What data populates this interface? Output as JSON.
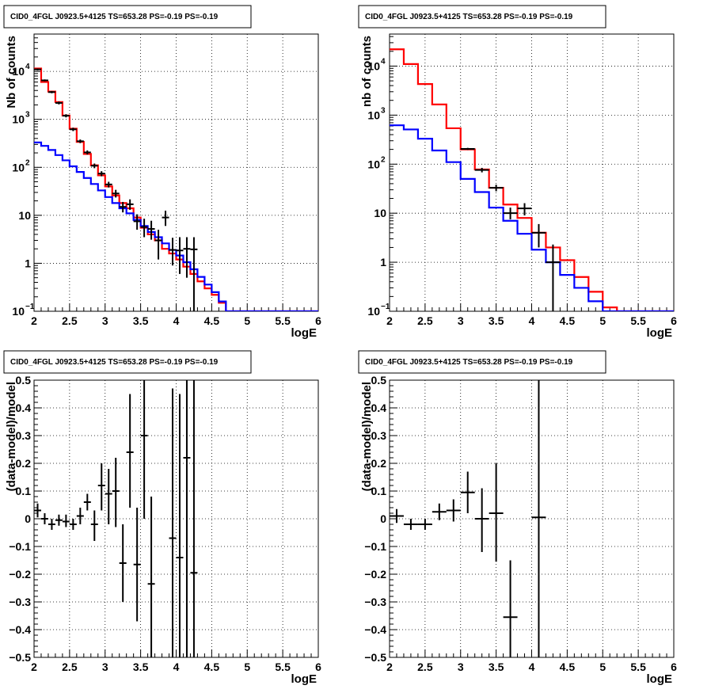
{
  "chart_data": [
    {
      "type": "line",
      "title": "CID0_4FGL J0923.5+4125 TS=653.28 PS=-0.19 PS=-0.19",
      "xlabel": "logE",
      "ylabel": "Nb of counts",
      "xlim": [
        2,
        6
      ],
      "ylim": [
        0.1,
        60000
      ],
      "yscale": "log",
      "grid": true,
      "xticks": [
        "2",
        "2.5",
        "3",
        "3.5",
        "4",
        "4.5",
        "5",
        "5.5",
        "6"
      ],
      "yticks": [
        {
          "v": 0.1,
          "base": "10",
          "exp": "−1"
        },
        {
          "v": 1,
          "label": "1"
        },
        {
          "v": 10,
          "label": "10"
        },
        {
          "v": 100,
          "base": "10",
          "exp": "2"
        },
        {
          "v": 1000,
          "base": "10",
          "exp": "3"
        },
        {
          "v": 10000,
          "base": "10",
          "exp": "4"
        }
      ],
      "series": [
        {
          "color": "#ff0000",
          "style": "step",
          "edges": [
            2,
            2.1,
            2.2,
            2.3,
            2.4,
            2.5,
            2.6,
            2.7,
            2.8,
            2.9,
            3,
            3.1,
            3.2,
            3.3,
            3.4,
            3.5,
            3.6,
            3.7,
            3.8,
            3.9,
            4,
            4.1,
            4.2,
            4.3,
            4.4,
            4.5,
            4.6,
            4.7,
            4.8,
            4.9,
            5,
            5.1,
            5.2,
            5.3,
            5.4,
            5.5,
            5.6,
            5.7,
            5.8,
            5.9,
            6
          ],
          "values": [
            11500,
            6000,
            3800,
            2300,
            1200,
            640,
            340,
            190,
            110,
            68,
            40,
            26,
            18,
            14,
            9,
            5.5,
            4,
            3,
            2,
            1.6,
            1.2,
            0.85,
            0.6,
            0.42,
            0.3,
            0.22,
            0.15,
            0.1,
            0.1,
            0.1,
            0.1,
            0.1,
            0.1,
            0.1,
            0.1,
            0.1,
            0.1,
            0.1,
            0.1,
            0.1
          ]
        },
        {
          "color": "#0000ff",
          "style": "step",
          "edges": [
            2,
            2.1,
            2.2,
            2.3,
            2.4,
            2.5,
            2.6,
            2.7,
            2.8,
            2.9,
            3,
            3.1,
            3.2,
            3.3,
            3.4,
            3.5,
            3.6,
            3.7,
            3.8,
            3.9,
            4,
            4.1,
            4.2,
            4.3,
            4.4,
            4.5,
            4.6,
            4.7,
            4.8,
            4.9,
            5,
            5.1,
            5.2,
            5.3,
            5.4,
            5.5,
            5.6,
            5.7,
            5.8,
            5.9,
            6
          ],
          "values": [
            330,
            280,
            230,
            180,
            140,
            105,
            80,
            60,
            45,
            33,
            24,
            18,
            14,
            11,
            8,
            6,
            4.5,
            3.5,
            2.6,
            1.9,
            1.45,
            1.05,
            0.75,
            0.52,
            0.36,
            0.25,
            0.16,
            0.1,
            0.1,
            0.1,
            0.1,
            0.1,
            0.1,
            0.1,
            0.1,
            0.1,
            0.1,
            0.1,
            0.1,
            0.1
          ]
        }
      ],
      "points": [
        {
          "x": 2.05,
          "y": 11000,
          "xerr": 0.05,
          "lo": 10500,
          "hi": 11500
        },
        {
          "x": 2.15,
          "y": 6500,
          "xerr": 0.05,
          "lo": 6200,
          "hi": 6800
        },
        {
          "x": 2.25,
          "y": 3700,
          "xerr": 0.05,
          "lo": 3500,
          "hi": 3900
        },
        {
          "x": 2.35,
          "y": 2200,
          "xerr": 0.05,
          "lo": 2050,
          "hi": 2350
        },
        {
          "x": 2.45,
          "y": 1190,
          "xerr": 0.05,
          "lo": 1100,
          "hi": 1280
        },
        {
          "x": 2.55,
          "y": 620,
          "xerr": 0.05,
          "lo": 570,
          "hi": 670
        },
        {
          "x": 2.65,
          "y": 350,
          "xerr": 0.05,
          "lo": 320,
          "hi": 380
        },
        {
          "x": 2.75,
          "y": 205,
          "xerr": 0.05,
          "lo": 185,
          "hi": 225
        },
        {
          "x": 2.85,
          "y": 108,
          "xerr": 0.05,
          "lo": 96,
          "hi": 120
        },
        {
          "x": 2.95,
          "y": 74,
          "xerr": 0.05,
          "lo": 65,
          "hi": 83
        },
        {
          "x": 3.05,
          "y": 44,
          "xerr": 0.05,
          "lo": 38,
          "hi": 50
        },
        {
          "x": 3.15,
          "y": 28.5,
          "xerr": 0.05,
          "lo": 23.5,
          "hi": 34
        },
        {
          "x": 3.25,
          "y": 15,
          "xerr": 0.05,
          "lo": 11.5,
          "hi": 19
        },
        {
          "x": 3.35,
          "y": 17,
          "xerr": 0.05,
          "lo": 13,
          "hi": 21.5
        },
        {
          "x": 3.45,
          "y": 7.5,
          "xerr": 0.05,
          "lo": 5,
          "hi": 10.5
        },
        {
          "x": 3.55,
          "y": 5.7,
          "xerr": 0.05,
          "lo": 3.5,
          "hi": 8.5
        },
        {
          "x": 3.65,
          "y": 5.2,
          "xerr": 0.05,
          "lo": 3.1,
          "hi": 7.7
        },
        {
          "x": 3.75,
          "y": 3,
          "xerr": 0.05,
          "lo": 1.2,
          "hi": 5
        },
        {
          "x": 3.85,
          "y": 9,
          "xerr": 0.05,
          "lo": 6,
          "hi": 12.5
        },
        {
          "x": 3.95,
          "y": 1.9,
          "xerr": 0.05,
          "lo": 0.9,
          "hi": 3.4
        },
        {
          "x": 4.05,
          "y": 1.85,
          "xerr": 0.05,
          "lo": 0.6,
          "hi": 3.5
        },
        {
          "x": 4.15,
          "y": 2,
          "xerr": 0.05,
          "lo": 0.5,
          "hi": 3.5
        },
        {
          "x": 4.25,
          "y": 1.95,
          "xerr": 0.05,
          "lo": 0.1,
          "hi": 3.5
        }
      ]
    },
    {
      "type": "line",
      "title": "CID0_4FGL J0923.5+4125 TS=653.28 PS=-0.19 PS=-0.19",
      "xlabel": "logE",
      "ylabel": "nb of counts",
      "xlim": [
        2,
        6
      ],
      "ylim": [
        0.1,
        45000
      ],
      "yscale": "log",
      "grid": true,
      "xticks": [
        "2",
        "2.5",
        "3",
        "3.5",
        "4",
        "4.5",
        "5",
        "5.5",
        "6"
      ],
      "yticks": [
        {
          "v": 0.1,
          "base": "10",
          "exp": "−1"
        },
        {
          "v": 1,
          "label": "1"
        },
        {
          "v": 10,
          "label": "10"
        },
        {
          "v": 100,
          "base": "10",
          "exp": "2"
        },
        {
          "v": 1000,
          "base": "10",
          "exp": "3"
        },
        {
          "v": 10000,
          "base": "10",
          "exp": "4"
        }
      ],
      "series": [
        {
          "color": "#ff0000",
          "style": "step",
          "edges": [
            2,
            2.2,
            2.4,
            2.6,
            2.8,
            3,
            3.2,
            3.4,
            3.6,
            3.8,
            4,
            4.2,
            4.4,
            4.6,
            4.8,
            5,
            5.2,
            5.4,
            5.6,
            5.8,
            6
          ],
          "values": [
            22000,
            11000,
            4300,
            1650,
            540,
            200,
            78,
            33,
            15,
            8,
            4,
            2,
            1.1,
            0.5,
            0.25,
            0.12,
            0.1,
            0.1,
            0.1,
            0.1
          ]
        },
        {
          "color": "#0000ff",
          "style": "step",
          "edges": [
            2,
            2.2,
            2.4,
            2.6,
            2.8,
            3,
            3.2,
            3.4,
            3.6,
            3.8,
            4,
            4.2,
            4.4,
            4.6,
            4.8,
            5,
            5.2,
            5.4,
            5.6,
            5.8,
            6
          ],
          "values": [
            620,
            510,
            330,
            190,
            110,
            50,
            27,
            13,
            7,
            3.8,
            1.8,
            1,
            0.55,
            0.3,
            0.16,
            0.1,
            0.1,
            0.1,
            0.1,
            0.1
          ]
        }
      ],
      "points": [
        {
          "x": 3.1,
          "y": 205,
          "xerr": 0.1,
          "lo": 195,
          "hi": 215
        },
        {
          "x": 3.3,
          "y": 76,
          "xerr": 0.1,
          "lo": 68,
          "hi": 84
        },
        {
          "x": 3.5,
          "y": 33,
          "xerr": 0.1,
          "lo": 28,
          "hi": 38
        },
        {
          "x": 3.7,
          "y": 10,
          "xerr": 0.1,
          "lo": 7.5,
          "hi": 13
        },
        {
          "x": 3.9,
          "y": 12.5,
          "xerr": 0.1,
          "lo": 9,
          "hi": 16
        },
        {
          "x": 4.1,
          "y": 4,
          "xerr": 0.1,
          "lo": 2,
          "hi": 6
        },
        {
          "x": 4.3,
          "y": 1,
          "xerr": 0.1,
          "lo": 0.1,
          "hi": 2.3
        }
      ]
    },
    {
      "type": "scatter",
      "title": "CID0_4FGL J0923.5+4125 TS=653.28 PS=-0.19 PS=-0.19",
      "xlabel": "logE",
      "ylabel": "(data-model)/model",
      "xlim": [
        2,
        6
      ],
      "ylim": [
        -0.5,
        0.5
      ],
      "yscale": "linear",
      "grid": true,
      "xticks": [
        "2",
        "2.5",
        "3",
        "3.5",
        "4",
        "4.5",
        "5",
        "5.5",
        "6"
      ],
      "yticks": [
        {
          "v": -0.5,
          "label": "−0.5"
        },
        {
          "v": -0.4,
          "label": "−0.4"
        },
        {
          "v": -0.3,
          "label": "−0.3"
        },
        {
          "v": -0.2,
          "label": "−0.2"
        },
        {
          "v": -0.1,
          "label": "−0.1"
        },
        {
          "v": 0,
          "label": "0"
        },
        {
          "v": 0.1,
          "label": "0.1"
        },
        {
          "v": 0.2,
          "label": "0.2"
        },
        {
          "v": 0.3,
          "label": "0.3"
        },
        {
          "v": 0.4,
          "label": "0.4"
        },
        {
          "v": 0.5,
          "label": "0.5"
        }
      ],
      "series": [],
      "points": [
        {
          "x": 2.05,
          "y": 0.03,
          "xerr": 0.05,
          "lo": 0.005,
          "hi": 0.055
        },
        {
          "x": 2.15,
          "y": 0.0,
          "xerr": 0.05,
          "lo": -0.02,
          "hi": 0.02
        },
        {
          "x": 2.25,
          "y": -0.02,
          "xerr": 0.05,
          "lo": -0.04,
          "hi": 0.0
        },
        {
          "x": 2.35,
          "y": -0.005,
          "xerr": 0.05,
          "lo": -0.025,
          "hi": 0.015
        },
        {
          "x": 2.45,
          "y": -0.01,
          "xerr": 0.05,
          "lo": -0.03,
          "hi": 0.015
        },
        {
          "x": 2.55,
          "y": -0.02,
          "xerr": 0.05,
          "lo": -0.04,
          "hi": 0.0
        },
        {
          "x": 2.65,
          "y": 0.01,
          "xerr": 0.05,
          "lo": -0.02,
          "hi": 0.04
        },
        {
          "x": 2.75,
          "y": 0.06,
          "xerr": 0.05,
          "lo": 0.03,
          "hi": 0.09
        },
        {
          "x": 2.85,
          "y": -0.02,
          "xerr": 0.05,
          "lo": -0.08,
          "hi": 0.03
        },
        {
          "x": 2.95,
          "y": 0.12,
          "xerr": 0.05,
          "lo": 0.03,
          "hi": 0.2
        },
        {
          "x": 3.05,
          "y": 0.09,
          "xerr": 0.05,
          "lo": -0.02,
          "hi": 0.18
        },
        {
          "x": 3.15,
          "y": 0.1,
          "xerr": 0.05,
          "lo": -0.03,
          "hi": 0.22
        },
        {
          "x": 3.25,
          "y": -0.16,
          "xerr": 0.05,
          "lo": -0.3,
          "hi": -0.02
        },
        {
          "x": 3.35,
          "y": 0.24,
          "xerr": 0.05,
          "lo": 0.04,
          "hi": 0.45
        },
        {
          "x": 3.45,
          "y": -0.165,
          "xerr": 0.05,
          "lo": -0.37,
          "hi": 0.04
        },
        {
          "x": 3.55,
          "y": 0.3,
          "xerr": 0.05,
          "lo": 0.0,
          "hi": 0.5
        },
        {
          "x": 3.65,
          "y": -0.235,
          "xerr": 0.05,
          "lo": -0.5,
          "hi": 0.08
        },
        {
          "x": 3.95,
          "y": -0.07,
          "xerr": 0.05,
          "lo": -0.5,
          "hi": 0.47
        },
        {
          "x": 4.05,
          "y": -0.14,
          "xerr": 0.05,
          "lo": -0.5,
          "hi": 0.45
        },
        {
          "x": 4.15,
          "y": 0.22,
          "xerr": 0.05,
          "lo": -0.5,
          "hi": 0.5
        },
        {
          "x": 4.25,
          "y": -0.195,
          "xerr": 0.05,
          "lo": -0.5,
          "hi": 0.5
        }
      ]
    },
    {
      "type": "scatter",
      "title": "CID0_4FGL J0923.5+4125 TS=653.28 PS=-0.19 PS=-0.19",
      "xlabel": "logE",
      "ylabel": "(data-model)/model",
      "xlim": [
        2,
        6
      ],
      "ylim": [
        -0.5,
        0.5
      ],
      "yscale": "linear",
      "grid": true,
      "xticks": [
        "2",
        "2.5",
        "3",
        "3.5",
        "4",
        "4.5",
        "5",
        "5.5",
        "6"
      ],
      "yticks": [
        {
          "v": -0.5,
          "label": "−0.5"
        },
        {
          "v": -0.4,
          "label": "−0.4"
        },
        {
          "v": -0.3,
          "label": "−0.3"
        },
        {
          "v": -0.2,
          "label": "−0.2"
        },
        {
          "v": -0.1,
          "label": "−0.1"
        },
        {
          "v": 0,
          "label": "0"
        },
        {
          "v": 0.1,
          "label": "0.1"
        },
        {
          "v": 0.2,
          "label": "0.2"
        },
        {
          "v": 0.3,
          "label": "0.3"
        },
        {
          "v": 0.4,
          "label": "0.4"
        },
        {
          "v": 0.5,
          "label": "0.5"
        }
      ],
      "series": [],
      "points": [
        {
          "x": 2.1,
          "y": 0.01,
          "xerr": 0.1,
          "lo": -0.015,
          "hi": 0.035
        },
        {
          "x": 2.3,
          "y": -0.02,
          "xerr": 0.1,
          "lo": -0.04,
          "hi": 0.0
        },
        {
          "x": 2.5,
          "y": -0.02,
          "xerr": 0.1,
          "lo": -0.04,
          "hi": 0.0
        },
        {
          "x": 2.7,
          "y": 0.025,
          "xerr": 0.1,
          "lo": -0.005,
          "hi": 0.055
        },
        {
          "x": 2.9,
          "y": 0.03,
          "xerr": 0.1,
          "lo": -0.01,
          "hi": 0.07
        },
        {
          "x": 3.1,
          "y": 0.095,
          "xerr": 0.1,
          "lo": 0.02,
          "hi": 0.17
        },
        {
          "x": 3.3,
          "y": 0.0,
          "xerr": 0.1,
          "lo": -0.12,
          "hi": 0.11
        },
        {
          "x": 3.5,
          "y": 0.02,
          "xerr": 0.1,
          "lo": -0.155,
          "hi": 0.2
        },
        {
          "x": 3.7,
          "y": -0.355,
          "xerr": 0.1,
          "lo": -0.5,
          "hi": -0.15
        },
        {
          "x": 4.1,
          "y": 0.005,
          "xerr": 0.1,
          "lo": -0.5,
          "hi": 0.5
        }
      ]
    }
  ]
}
